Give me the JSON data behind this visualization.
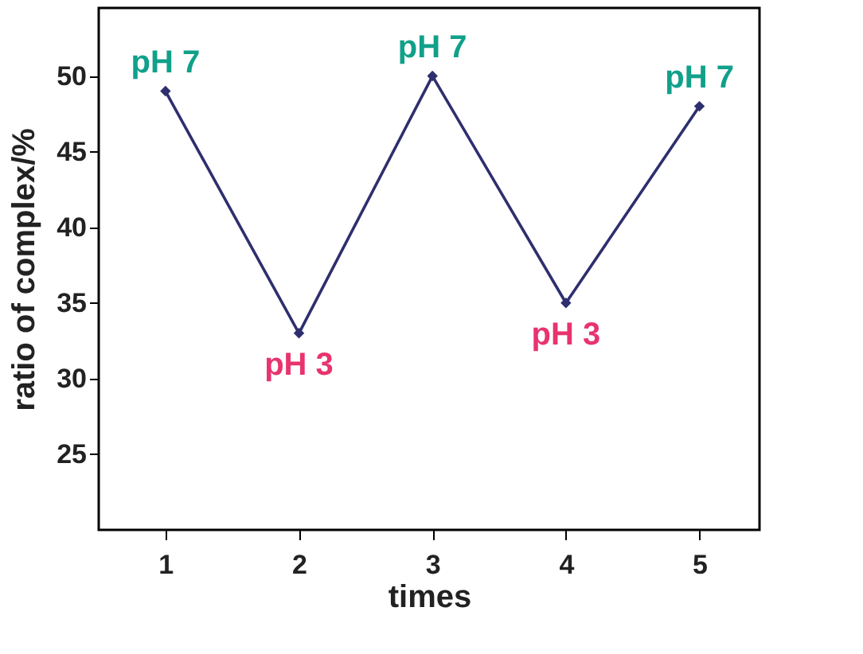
{
  "chart_data": {
    "type": "line",
    "xlabel": "times",
    "ylabel": "ratio of complex/%",
    "x": [
      1,
      2,
      3,
      4,
      5
    ],
    "series": [
      {
        "color": "#2e2f6e",
        "values": [
          49,
          33,
          50,
          35,
          48
        ]
      }
    ],
    "xlim": [
      0.5,
      5.45
    ],
    "xticks": [
      1,
      2,
      3,
      4,
      5
    ],
    "ylim": [
      20,
      54.5
    ],
    "yticks": [
      25,
      30,
      35,
      40,
      45,
      50
    ],
    "marker": "diamond",
    "grid": false,
    "annotations": [
      {
        "text": "pH 7",
        "x": 1,
        "y": 49
      },
      {
        "text": "pH 3",
        "x": 2,
        "y": 33
      },
      {
        "text": "pH 7",
        "x": 3,
        "y": 50
      },
      {
        "text": "pH 3",
        "x": 4,
        "y": 35
      },
      {
        "text": "pH 7",
        "x": 5,
        "y": 48
      }
    ]
  }
}
